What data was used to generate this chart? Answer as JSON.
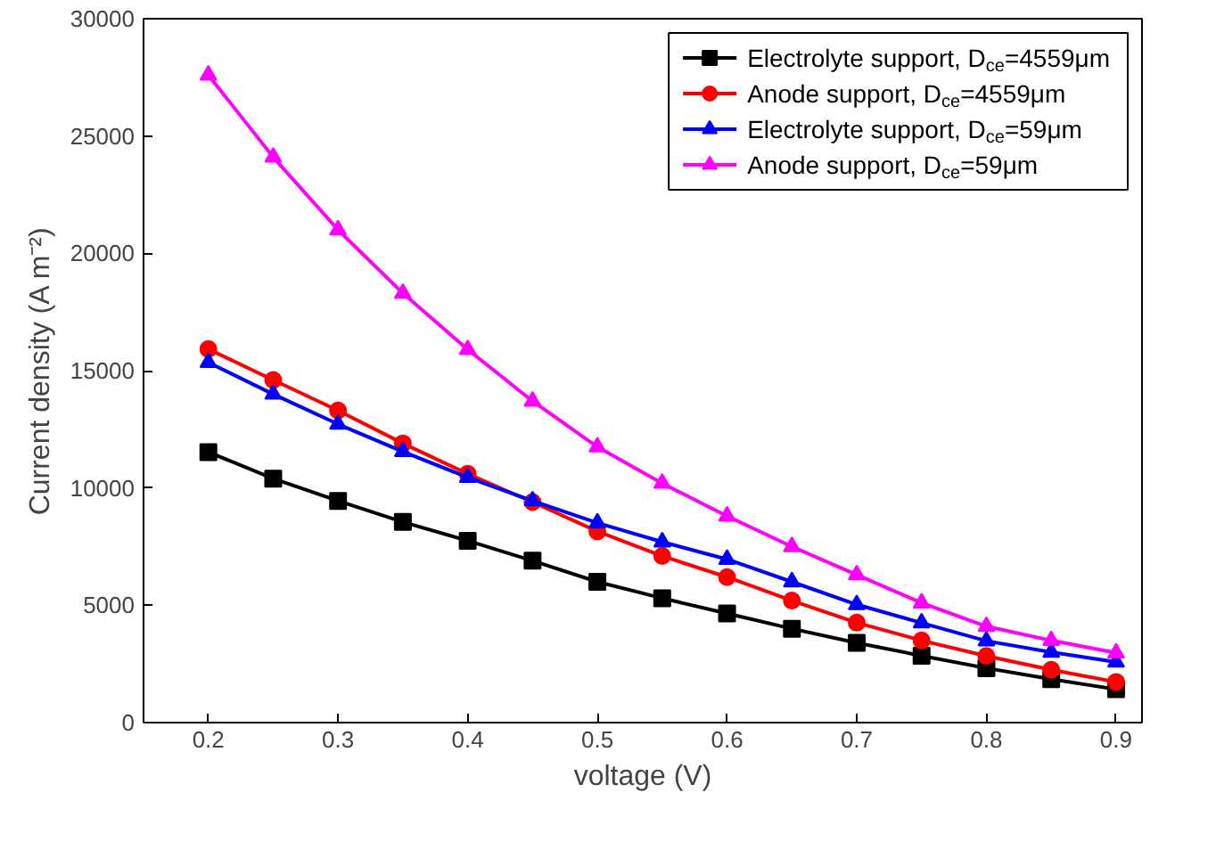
{
  "chart_data": {
    "type": "line",
    "xlabel": "voltage (V)",
    "ylabel": "Current density (A m⁻²)",
    "x": [
      0.2,
      0.25,
      0.3,
      0.35,
      0.4,
      0.45,
      0.5,
      0.55,
      0.6,
      0.65,
      0.7,
      0.75,
      0.8,
      0.85,
      0.9
    ],
    "xlim": [
      0.15,
      0.92
    ],
    "xticks": [
      0.2,
      0.3,
      0.4,
      0.5,
      0.6,
      0.7,
      0.8,
      0.9
    ],
    "ylim": [
      0,
      30000
    ],
    "yticks": [
      0,
      5000,
      10000,
      15000,
      20000,
      25000,
      30000
    ],
    "grid": false,
    "legend": "top right",
    "line_style": "solid",
    "series": [
      {
        "name": "Electrolyte support, D$_{ce}$=4559μm",
        "color": "#000000",
        "marker": "square",
        "values": [
          11530,
          10400,
          9450,
          8550,
          7750,
          6900,
          6000,
          5300,
          4650,
          4000,
          3400,
          2850,
          2320,
          1850,
          1420
        ]
      },
      {
        "name": "Anode support, D$_{ce}$=4559μm",
        "color": "#ff0000",
        "marker": "circle",
        "values": [
          15920,
          14600,
          13300,
          11900,
          10600,
          9400,
          8150,
          7100,
          6200,
          5200,
          4260,
          3500,
          2840,
          2250,
          1730
        ]
      },
      {
        "name": "Electrolyte support, D$_{ce}$=59μm",
        "color": "#0000ff",
        "marker": "triangle",
        "values": [
          15350,
          14000,
          12720,
          11550,
          10450,
          9450,
          8510,
          7700,
          6960,
          6000,
          5030,
          4250,
          3480,
          3000,
          2580
        ]
      },
      {
        "name": "Anode support, D$_{ce}$=59μm",
        "color": "#ff00ff",
        "marker": "triangle",
        "values": [
          27600,
          24100,
          21000,
          18300,
          15900,
          13700,
          11750,
          10200,
          8800,
          7500,
          6300,
          5100,
          4100,
          3500,
          2970
        ]
      }
    ]
  }
}
